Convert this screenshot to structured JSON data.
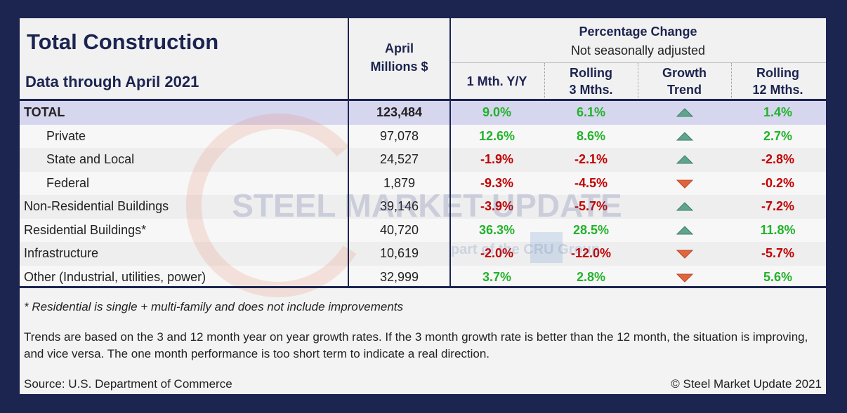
{
  "header": {
    "title": "Total Construction",
    "subtitle": "Data through April 2021",
    "value_column": [
      "April",
      "Millions $"
    ],
    "group_title": "Percentage Change",
    "group_subtitle": "Not seasonally adjusted",
    "columns": [
      [
        "1 Mth. Y/Y"
      ],
      [
        "Rolling",
        "3 Mths."
      ],
      [
        "Growth",
        "Trend"
      ],
      [
        "Rolling",
        "12 Mths."
      ]
    ]
  },
  "table": {
    "rows": [
      {
        "label": "TOTAL",
        "value": "123,484",
        "m1": "9.0%",
        "r3": "6.1%",
        "trend": "up",
        "r12": "1.4%",
        "indent": false
      },
      {
        "label": "Private",
        "value": "97,078",
        "m1": "12.6%",
        "r3": "8.6%",
        "trend": "up",
        "r12": "2.7%",
        "indent": true
      },
      {
        "label": "State and Local",
        "value": "24,527",
        "m1": "-1.9%",
        "r3": "-2.1%",
        "trend": "up",
        "r12": "-2.8%",
        "indent": true
      },
      {
        "label": "Federal",
        "value": "1,879",
        "m1": "-9.3%",
        "r3": "-4.5%",
        "trend": "down",
        "r12": "-0.2%",
        "indent": true
      },
      {
        "label": "Non-Residential Buildings",
        "value": "39,146",
        "m1": "-3.9%",
        "r3": "-5.7%",
        "trend": "up",
        "r12": "-7.2%",
        "indent": false
      },
      {
        "label": "Residential Buildings*",
        "value": "40,720",
        "m1": "36.3%",
        "r3": "28.5%",
        "trend": "up",
        "r12": "11.8%",
        "indent": false
      },
      {
        "label": "Infrastructure",
        "value": "10,619",
        "m1": "-2.0%",
        "r3": "-12.0%",
        "trend": "down",
        "r12": "-5.7%",
        "indent": false
      },
      {
        "label": "Other (Industrial, utilities, power)",
        "value": "32,999",
        "m1": "3.7%",
        "r3": "2.8%",
        "trend": "down",
        "r12": "5.6%",
        "indent": false
      }
    ]
  },
  "footer": {
    "note": "* Residential is single + multi-family and does not include improvements",
    "explanation": "Trends are based on the 3 and 12 month year on year growth rates. If the 3 month growth rate is better than the 12 month, the situation is improving, and vice versa. The one month performance is too short term to indicate a real direction.",
    "source": "Source: U.S. Department of Commerce",
    "copyright": "© Steel Market Update 2021"
  },
  "watermark": {
    "brand": "STEEL MARKET UPDATE",
    "tagline": "part of the CRU Group"
  }
}
